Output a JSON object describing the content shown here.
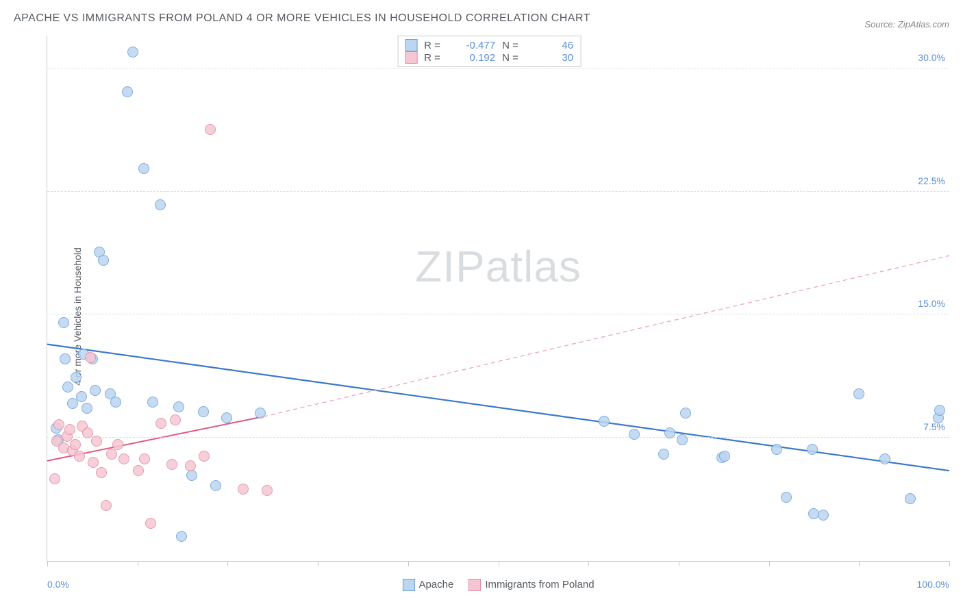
{
  "title": "APACHE VS IMMIGRANTS FROM POLAND 4 OR MORE VEHICLES IN HOUSEHOLD CORRELATION CHART",
  "source": "Source: ZipAtlas.com",
  "ylabel": "4 or more Vehicles in Household",
  "watermark": "ZIPatlas",
  "chart": {
    "type": "scatter",
    "xlim": [
      0,
      100
    ],
    "ylim": [
      0,
      32
    ],
    "x_ticks": [
      0,
      10,
      20,
      30,
      40,
      50,
      60,
      70,
      80,
      90,
      100
    ],
    "x_tick_labels": {
      "0": "0.0%",
      "100": "100.0%"
    },
    "y_ticks": [
      7.5,
      15.0,
      22.5,
      30.0
    ],
    "y_tick_labels": [
      "7.5%",
      "15.0%",
      "22.5%",
      "30.0%"
    ],
    "grid_color": "#d9dde2",
    "axis_color": "#c7cbd1",
    "background_color": "#ffffff",
    "marker_radius": 8,
    "marker_border_width": 1.2,
    "series": [
      {
        "name": "Apache",
        "fill": "#bcd5f0",
        "stroke": "#6a9fd8",
        "r_value": "-0.477",
        "n_value": "46",
        "trend": {
          "x1": 0,
          "y1": 13.2,
          "x2": 100,
          "y2": 5.5,
          "stroke": "#3b78c9",
          "width": 2.2,
          "dash": null
        },
        "points": [
          [
            1.0,
            8.1
          ],
          [
            1.2,
            7.4
          ],
          [
            1.8,
            14.5
          ],
          [
            2.0,
            12.3
          ],
          [
            2.3,
            10.6
          ],
          [
            2.8,
            9.6
          ],
          [
            3.2,
            11.2
          ],
          [
            3.8,
            10.0
          ],
          [
            4.0,
            12.6
          ],
          [
            4.4,
            9.3
          ],
          [
            5.0,
            12.3
          ],
          [
            5.3,
            10.4
          ],
          [
            5.8,
            18.8
          ],
          [
            6.2,
            18.3
          ],
          [
            7.0,
            10.2
          ],
          [
            7.6,
            9.7
          ],
          [
            8.9,
            28.6
          ],
          [
            9.5,
            31.0
          ],
          [
            10.7,
            23.9
          ],
          [
            11.7,
            9.7
          ],
          [
            12.5,
            21.7
          ],
          [
            14.6,
            9.4
          ],
          [
            14.9,
            1.5
          ],
          [
            16.0,
            5.2
          ],
          [
            17.3,
            9.1
          ],
          [
            18.7,
            4.6
          ],
          [
            19.9,
            8.7
          ],
          [
            23.6,
            9.0
          ],
          [
            61.7,
            8.5
          ],
          [
            65.1,
            7.7
          ],
          [
            68.3,
            6.5
          ],
          [
            69.0,
            7.8
          ],
          [
            70.4,
            7.4
          ],
          [
            70.8,
            9.0
          ],
          [
            74.8,
            6.3
          ],
          [
            75.1,
            6.4
          ],
          [
            80.9,
            6.8
          ],
          [
            81.9,
            3.9
          ],
          [
            84.8,
            6.8
          ],
          [
            85.0,
            2.9
          ],
          [
            86.0,
            2.8
          ],
          [
            90.0,
            10.2
          ],
          [
            92.9,
            6.2
          ],
          [
            95.7,
            3.8
          ],
          [
            98.8,
            8.7
          ],
          [
            98.9,
            9.2
          ]
        ]
      },
      {
        "name": "Immigrants from Poland",
        "fill": "#f6c7d3",
        "stroke": "#e18aa2",
        "r_value": "0.192",
        "n_value": "30",
        "trend_solid": {
          "x1": 0,
          "y1": 6.1,
          "x2": 24,
          "y2": 8.8,
          "stroke": "#e05a83",
          "width": 2.0
        },
        "trend_dash": {
          "x1": 24,
          "y1": 8.8,
          "x2": 100,
          "y2": 18.6,
          "stroke": "#e9a3b6",
          "width": 1.3,
          "dash": "6 5"
        },
        "points": [
          [
            0.8,
            5.0
          ],
          [
            1.1,
            7.3
          ],
          [
            1.3,
            8.3
          ],
          [
            1.8,
            6.9
          ],
          [
            2.2,
            7.6
          ],
          [
            2.5,
            8.0
          ],
          [
            2.8,
            6.7
          ],
          [
            3.1,
            7.1
          ],
          [
            3.6,
            6.4
          ],
          [
            3.9,
            8.2
          ],
          [
            4.5,
            7.8
          ],
          [
            4.8,
            12.4
          ],
          [
            5.1,
            6.0
          ],
          [
            5.5,
            7.3
          ],
          [
            6.0,
            5.4
          ],
          [
            6.5,
            3.4
          ],
          [
            7.1,
            6.5
          ],
          [
            7.8,
            7.1
          ],
          [
            8.5,
            6.2
          ],
          [
            10.1,
            5.5
          ],
          [
            10.8,
            6.2
          ],
          [
            11.5,
            2.3
          ],
          [
            12.6,
            8.4
          ],
          [
            13.8,
            5.9
          ],
          [
            14.2,
            8.6
          ],
          [
            15.9,
            5.8
          ],
          [
            17.4,
            6.4
          ],
          [
            18.1,
            26.3
          ],
          [
            21.7,
            4.4
          ],
          [
            24.4,
            4.3
          ]
        ]
      }
    ]
  },
  "legend_bottom": [
    {
      "label": "Apache",
      "fill": "#bcd5f0",
      "stroke": "#6a9fd8"
    },
    {
      "label": "Immigrants from Poland",
      "fill": "#f6c7d3",
      "stroke": "#e18aa2"
    }
  ],
  "legend_top_labels": {
    "r": "R =",
    "n": "N ="
  }
}
